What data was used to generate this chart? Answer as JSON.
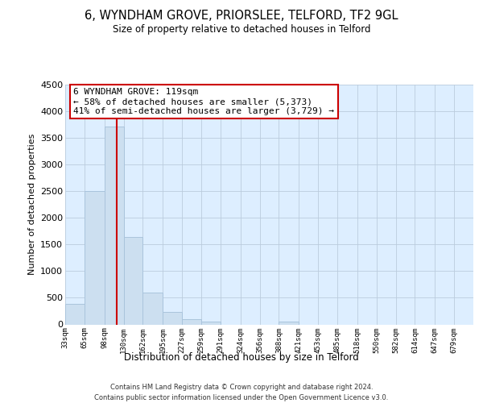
{
  "title": "6, WYNDHAM GROVE, PRIORSLEE, TELFORD, TF2 9GL",
  "subtitle": "Size of property relative to detached houses in Telford",
  "xlabel": "Distribution of detached houses by size in Telford",
  "ylabel": "Number of detached properties",
  "bar_color": "#ccdff0",
  "bar_edgecolor": "#aac4dc",
  "background_color": "#ffffff",
  "plot_bg_color": "#ddeeff",
  "grid_color": "#bbccdd",
  "annotation_text": "6 WYNDHAM GROVE: 119sqm\n← 58% of detached houses are smaller (5,373)\n41% of semi-detached houses are larger (3,729) →",
  "annotation_box_edgecolor": "#cc0000",
  "vline_x": 119,
  "vline_color": "#cc0000",
  "categories": [
    "33sqm",
    "65sqm",
    "98sqm",
    "130sqm",
    "162sqm",
    "195sqm",
    "227sqm",
    "259sqm",
    "291sqm",
    "324sqm",
    "356sqm",
    "388sqm",
    "421sqm",
    "453sqm",
    "485sqm",
    "518sqm",
    "550sqm",
    "582sqm",
    "614sqm",
    "647sqm",
    "679sqm"
  ],
  "bin_edges": [
    33,
    65,
    98,
    130,
    162,
    195,
    227,
    259,
    291,
    324,
    356,
    388,
    421,
    453,
    485,
    518,
    550,
    582,
    614,
    647,
    679,
    711
  ],
  "values": [
    380,
    2500,
    3720,
    1640,
    600,
    240,
    100,
    55,
    0,
    0,
    0,
    50,
    0,
    0,
    0,
    0,
    0,
    0,
    0,
    0,
    0
  ],
  "ylim": [
    0,
    4500
  ],
  "yticks": [
    0,
    500,
    1000,
    1500,
    2000,
    2500,
    3000,
    3500,
    4000,
    4500
  ],
  "footer_line1": "Contains HM Land Registry data © Crown copyright and database right 2024.",
  "footer_line2": "Contains public sector information licensed under the Open Government Licence v3.0."
}
